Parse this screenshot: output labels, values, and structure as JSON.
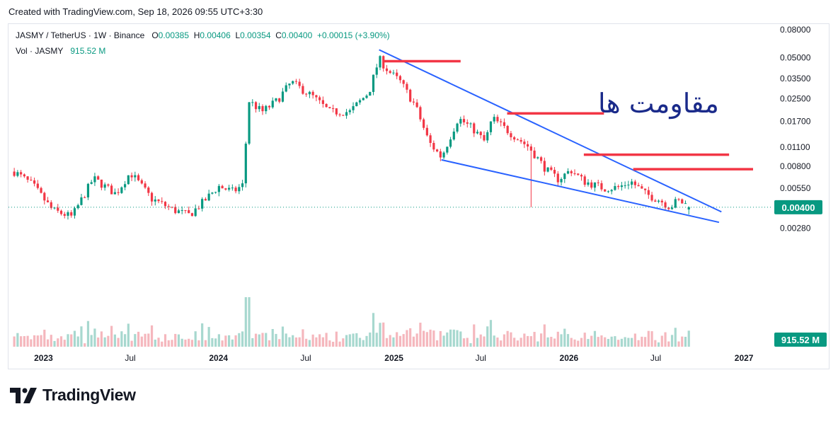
{
  "header": {
    "created_text": "Created with TradingView.com, Sep 18, 2026 09:55 UTC+3:30"
  },
  "legend": {
    "symbol": "JASMY / TetherUS · 1W · Binance",
    "o_label": "O",
    "o_value": "0.00385",
    "h_label": "H",
    "h_value": "0.00406",
    "l_label": "L",
    "l_value": "0.00354",
    "c_label": "C",
    "c_value": "0.00400",
    "change": "+0.00015 (+3.90%)",
    "vol_label": "Vol · JASMY",
    "vol_value": "915.52 M"
  },
  "annotation_text": "مقاومت ها",
  "brand": "TradingView",
  "colors": {
    "up": "#089981",
    "down": "#f23645",
    "trendline": "#2962ff",
    "resistance": "#f23645",
    "annotation": "#1a2a8a"
  },
  "chart_data": {
    "type": "candlestick",
    "interval": "1W",
    "y_scale": "log",
    "ylim": [
      0.0024,
      0.09
    ],
    "y_ticks": [
      "0.08000",
      "0.05000",
      "0.03500",
      "0.02500",
      "0.01700",
      "0.01100",
      "0.00800",
      "0.00550",
      "0.00280"
    ],
    "x_ticks": [
      "2023",
      "Jul",
      "2024",
      "Jul",
      "2025",
      "Jul",
      "2026",
      "Jul",
      "2027"
    ],
    "last_price_label": "0.00400",
    "volume_label": "915.52 M",
    "anchors": [
      [
        "2022-11-01",
        0.0073
      ],
      [
        "2022-12-10",
        0.0058
      ],
      [
        "2023-01-20",
        0.0038
      ],
      [
        "2023-03-01",
        0.0034
      ],
      [
        "2023-04-15",
        0.0065
      ],
      [
        "2023-06-01",
        0.005
      ],
      [
        "2023-07-01",
        0.0072
      ],
      [
        "2023-08-15",
        0.0046
      ],
      [
        "2023-10-01",
        0.0038
      ],
      [
        "2023-11-01",
        0.0035
      ],
      [
        "2023-12-01",
        0.0044
      ],
      [
        "2024-01-01",
        0.0057
      ],
      [
        "2024-02-01",
        0.0052
      ],
      [
        "2024-02-20",
        0.0058
      ],
      [
        "2024-03-05",
        0.024
      ],
      [
        "2024-04-01",
        0.02
      ],
      [
        "2024-05-01",
        0.024
      ],
      [
        "2024-06-01",
        0.033
      ],
      [
        "2024-07-15",
        0.026
      ],
      [
        "2024-08-20",
        0.02
      ],
      [
        "2024-10-01",
        0.02
      ],
      [
        "2024-11-10",
        0.028
      ],
      [
        "2024-12-01",
        0.049
      ],
      [
        "2024-12-20",
        0.04
      ],
      [
        "2025-01-15",
        0.033
      ],
      [
        "2025-02-15",
        0.022
      ],
      [
        "2025-03-15",
        0.012
      ],
      [
        "2025-04-10",
        0.0093
      ],
      [
        "2025-05-15",
        0.018
      ],
      [
        "2025-06-15",
        0.015
      ],
      [
        "2025-07-10",
        0.012
      ],
      [
        "2025-07-25",
        0.018
      ],
      [
        "2025-09-01",
        0.014
      ],
      [
        "2025-10-10",
        0.011
      ],
      [
        "2025-11-15",
        0.0075
      ],
      [
        "2025-12-10",
        0.0064
      ],
      [
        "2026-01-05",
        0.0075
      ],
      [
        "2026-02-01",
        0.0062
      ],
      [
        "2026-03-15",
        0.0055
      ],
      [
        "2026-04-15",
        0.0056
      ],
      [
        "2026-05-10",
        0.0062
      ],
      [
        "2026-06-10",
        0.005
      ],
      [
        "2026-07-10",
        0.0045
      ],
      [
        "2026-08-01",
        0.004
      ],
      [
        "2026-08-15",
        0.0045
      ],
      [
        "2026-09-14",
        0.004
      ]
    ],
    "trendlines": [
      {
        "name": "upper",
        "from": [
          "2024-12-01",
          0.057
        ],
        "to": [
          "2026-11-15",
          0.0037
        ]
      },
      {
        "name": "lower",
        "from": [
          "2025-04-10",
          0.0089
        ],
        "to": [
          "2026-11-10",
          0.0031
        ]
      }
    ],
    "resistance_levels": [
      {
        "from": "2024-12-10",
        "to": "2025-05-20",
        "value": 0.047
      },
      {
        "from": "2025-08-25",
        "to": "2026-03-15",
        "value": 0.0195
      },
      {
        "from": "2026-02-01",
        "to": "2026-12-01",
        "value": 0.0097
      },
      {
        "from": "2026-05-15",
        "to": "2027-01-20",
        "value": 0.0076
      }
    ]
  }
}
